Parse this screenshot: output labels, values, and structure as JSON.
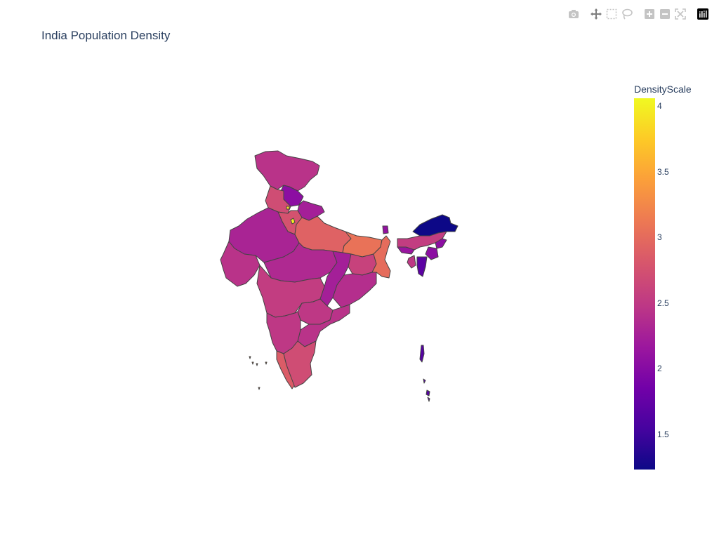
{
  "chart_data": {
    "type": "choropleth",
    "title": "India Population Density",
    "colorbar": {
      "title": "DensityScale",
      "range": [
        1.23,
        4.06
      ],
      "ticks": [
        "1.5",
        "2",
        "2.5",
        "3",
        "3.5",
        "4"
      ],
      "tick_values": [
        1.5,
        2,
        2.5,
        3,
        3.5,
        4
      ],
      "colorscale": [
        "#0d0887",
        "#46039f",
        "#7201a8",
        "#9c179e",
        "#bd3786",
        "#d8576b",
        "#ed7953",
        "#fb9f3a",
        "#fdca26",
        "#f0f921"
      ]
    },
    "regions": [
      {
        "id": "jammu-kashmir-ladakh",
        "value": 2.45
      },
      {
        "id": "himachal-pradesh",
        "value": 2.05
      },
      {
        "id": "punjab",
        "value": 2.7
      },
      {
        "id": "uttarakhand",
        "value": 2.25
      },
      {
        "id": "haryana",
        "value": 2.75
      },
      {
        "id": "delhi",
        "value": 4.0
      },
      {
        "id": "rajasthan",
        "value": 2.3
      },
      {
        "id": "uttar-pradesh",
        "value": 2.9
      },
      {
        "id": "bihar",
        "value": 3.05
      },
      {
        "id": "gujarat",
        "value": 2.45
      },
      {
        "id": "madhya-pradesh",
        "value": 2.35
      },
      {
        "id": "chhattisgarh",
        "value": 2.25
      },
      {
        "id": "jharkhand",
        "value": 2.6
      },
      {
        "id": "west-bengal",
        "value": 3.0
      },
      {
        "id": "odisha",
        "value": 2.4
      },
      {
        "id": "maharashtra",
        "value": 2.55
      },
      {
        "id": "telangana",
        "value": 2.5
      },
      {
        "id": "andhra-pradesh",
        "value": 2.45
      },
      {
        "id": "karnataka",
        "value": 2.5
      },
      {
        "id": "goa",
        "value": 2.6
      },
      {
        "id": "kerala",
        "value": 2.85
      },
      {
        "id": "tamil-nadu",
        "value": 2.7
      },
      {
        "id": "sikkim",
        "value": 2.1
      },
      {
        "id": "arunachal-pradesh",
        "value": 1.23
      },
      {
        "id": "assam",
        "value": 2.55
      },
      {
        "id": "meghalaya",
        "value": 2.15
      },
      {
        "id": "nagaland",
        "value": 2.05
      },
      {
        "id": "manipur",
        "value": 2.05
      },
      {
        "id": "mizoram",
        "value": 1.7
      },
      {
        "id": "tripura",
        "value": 2.5
      },
      {
        "id": "chandigarh",
        "value": 3.9
      },
      {
        "id": "andaman-nicobar",
        "value": 1.65
      },
      {
        "id": "lakshadweep",
        "value": 3.3
      }
    ]
  },
  "modebar": [
    {
      "name": "camera-icon"
    },
    {
      "name": "pan-icon"
    },
    {
      "name": "box-select-icon"
    },
    {
      "name": "lasso-select-icon"
    },
    {
      "name": "zoom-in-icon"
    },
    {
      "name": "zoom-out-icon"
    },
    {
      "name": "reset-view-icon"
    },
    {
      "name": "plotly-logo-icon"
    }
  ]
}
